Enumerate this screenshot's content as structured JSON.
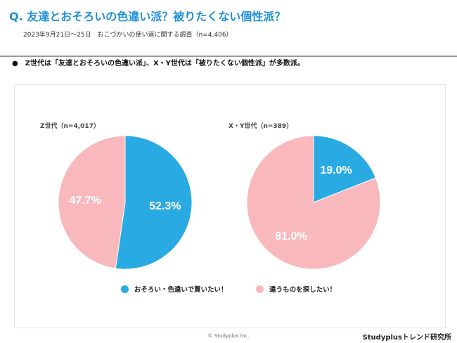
{
  "header": {
    "title": "Q. 友達とおそろいの色違い派？被りたくない個性派？",
    "subtitle": "2023年9月21日～25日　おこづかいの使い道に関する調査（n=4,406）"
  },
  "summary": "●　Z世代は「友達とおそろいの色違い派」、X・Y世代は「被りたくない個性派」が多数派。",
  "colors": {
    "blue": "#29aae3",
    "pink": "#f9b8bb",
    "title": "#1f8fd8"
  },
  "chart_data": [
    {
      "type": "pie",
      "title": "Z世代（n=4,017）",
      "labels": [
        "おそろい・色違いで買いたい！",
        "違うものを探したい！"
      ],
      "values": [
        52.3,
        47.7
      ],
      "data_labels": [
        "52.3%",
        "47.7%"
      ]
    },
    {
      "type": "pie",
      "title": "X・Y世代（n=389）",
      "labels": [
        "おそろい・色違いで買いたい！",
        "違うものを探したい！"
      ],
      "values": [
        19.0,
        81.0
      ],
      "data_labels": [
        "19.0%",
        "81.0%"
      ]
    }
  ],
  "legend": [
    "おそろい・色違いで買いたい！",
    "違うものを探したい！"
  ],
  "footer": {
    "copyright": "© Studyplus Inc.",
    "brand": "Studyplusトレンド研究所"
  }
}
